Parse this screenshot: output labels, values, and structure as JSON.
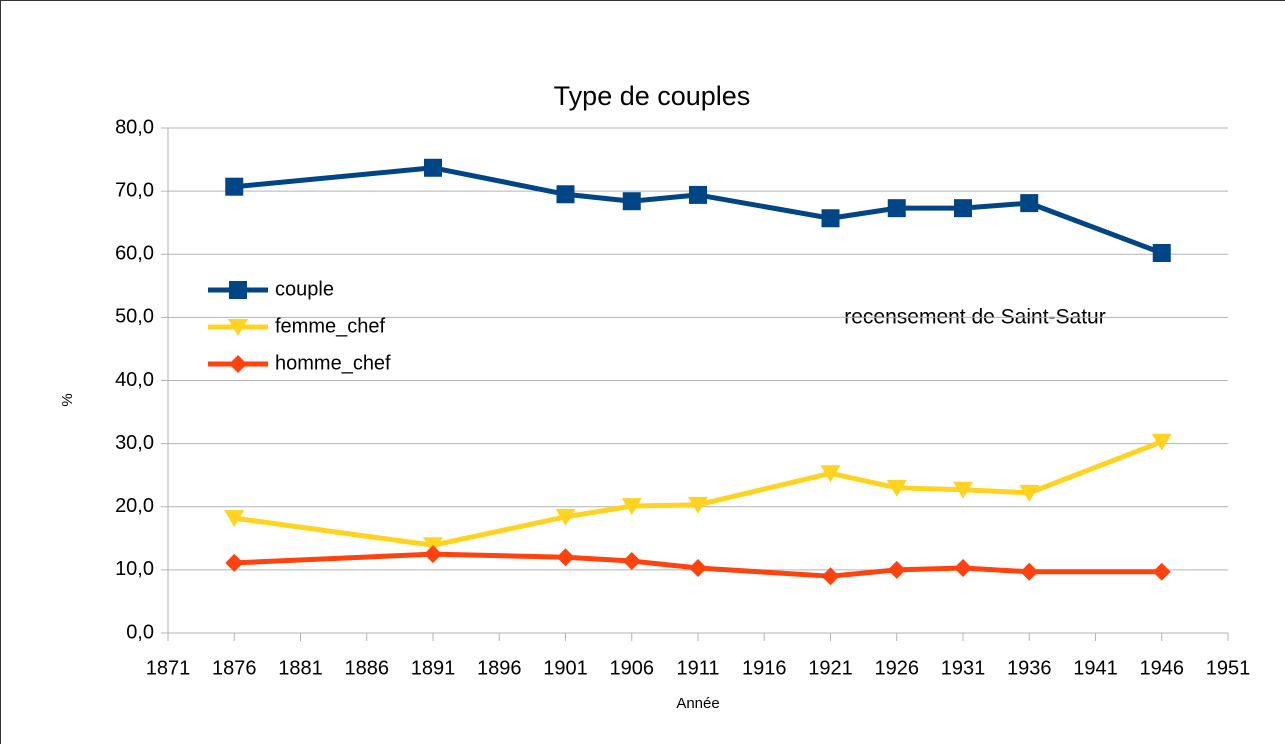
{
  "chart_data": {
    "type": "line",
    "title": "Type de couples",
    "annotation": "recensement de Saint-Satur",
    "xlabel": "Année",
    "ylabel": "%",
    "x": [
      1876,
      1891,
      1901,
      1906,
      1911,
      1921,
      1926,
      1931,
      1936,
      1946
    ],
    "series": [
      {
        "name": "couple",
        "color": "#004586",
        "marker": "square",
        "values": [
          70.7,
          73.7,
          69.5,
          68.4,
          69.4,
          65.7,
          67.3,
          67.3,
          68.1,
          60.2
        ]
      },
      {
        "name": "femme_chef",
        "color": "#ffd320",
        "marker": "triangle-down",
        "values": [
          18.2,
          13.9,
          18.4,
          20.1,
          20.3,
          25.3,
          23.0,
          22.7,
          22.2,
          30.3
        ]
      },
      {
        "name": "homme_chef",
        "color": "#ff420e",
        "marker": "diamond",
        "values": [
          11.1,
          12.5,
          12.0,
          11.4,
          10.3,
          9.0,
          10.0,
          10.3,
          9.7,
          9.7
        ]
      }
    ],
    "xlim": [
      1871,
      1951
    ],
    "xticks": [
      1871,
      1876,
      1881,
      1886,
      1891,
      1896,
      1901,
      1906,
      1911,
      1916,
      1921,
      1926,
      1931,
      1936,
      1941,
      1946,
      1951
    ],
    "ylim": [
      0,
      80
    ],
    "yticks": [
      {
        "value": 0,
        "label": "0,0"
      },
      {
        "value": 10,
        "label": "10,0"
      },
      {
        "value": 20,
        "label": "20,0"
      },
      {
        "value": 30,
        "label": "30,0"
      },
      {
        "value": 40,
        "label": "40,0"
      },
      {
        "value": 50,
        "label": "50,0"
      },
      {
        "value": 60,
        "label": "60,0"
      },
      {
        "value": 70,
        "label": "70,0"
      },
      {
        "value": 80,
        "label": "80,0"
      }
    ],
    "grid": true,
    "legend": "left"
  }
}
